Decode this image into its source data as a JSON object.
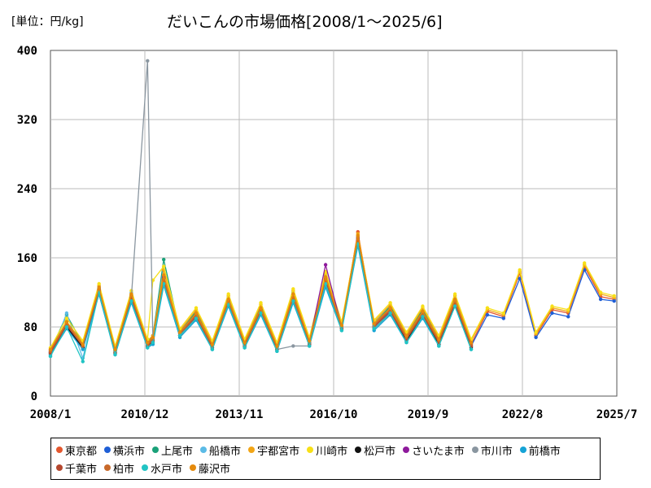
{
  "header": {
    "unit_label": "[単位：円/kg]",
    "title": "だいこんの市場価格[2008/1～2025/6]"
  },
  "chart_data": {
    "type": "line",
    "title": "だいこんの市場価格[2008/1～2025/6]",
    "unit": "円/kg",
    "xlabel": "",
    "ylabel": "",
    "ylim": [
      0,
      400
    ],
    "yticks": [
      "0",
      "80",
      "160",
      "240",
      "320",
      "400"
    ],
    "xticks": [
      "2008/1",
      "2010/12",
      "2013/11",
      "2016/10",
      "2019/9",
      "2022/8",
      "2025/7"
    ],
    "grid": true,
    "legend_position": "bottom",
    "x": [
      "2008/1",
      "2008/7",
      "2009/1",
      "2009/7",
      "2010/1",
      "2010/7",
      "2011/1",
      "2011/3",
      "2011/7",
      "2012/1",
      "2012/7",
      "2013/1",
      "2013/7",
      "2014/1",
      "2014/7",
      "2015/1",
      "2015/7",
      "2016/1",
      "2016/7",
      "2017/1",
      "2017/7",
      "2018/1",
      "2018/7",
      "2019/1",
      "2019/7",
      "2020/1",
      "2020/7",
      "2021/1",
      "2021/7",
      "2022/1",
      "2022/7",
      "2023/1",
      "2023/7",
      "2024/1",
      "2024/7",
      "2025/1",
      "2025/6"
    ],
    "series": [
      {
        "name": "東京都",
        "color": "#e4572e",
        "values": [
          48,
          82,
          58,
          124,
          52,
          116,
          60,
          68,
          140,
          72,
          96,
          58,
          112,
          60,
          102,
          56,
          118,
          62,
          138,
          80,
          190,
          82,
          102,
          68,
          98,
          64,
          112,
          60,
          98,
          92,
          142,
          70,
          100,
          96,
          150,
          115,
          112
        ]
      },
      {
        "name": "横浜市",
        "color": "#1f5fd6",
        "values": [
          50,
          80,
          57,
          120,
          50,
          112,
          58,
          64,
          132,
          70,
          92,
          56,
          108,
          58,
          98,
          54,
          112,
          60,
          132,
          78,
          184,
          80,
          98,
          66,
          94,
          62,
          108,
          58,
          94,
          90,
          136,
          68,
          96,
          92,
          146,
          112,
          110
        ]
      },
      {
        "name": "上尾市",
        "color": "#1aa179",
        "values": [
          52,
          94,
          60,
          126,
          54,
          118,
          62,
          70,
          158,
          74,
          98,
          60,
          114,
          62,
          104,
          58,
          120,
          64,
          140,
          82,
          186,
          84,
          104,
          70,
          100,
          66,
          114,
          62,
          null,
          null,
          null,
          null,
          null,
          null,
          null,
          null,
          null
        ]
      },
      {
        "name": "船橋市",
        "color": "#5bbbe6",
        "values": [
          46,
          96,
          44,
          122,
          48,
          120,
          56,
          66,
          150,
          72,
          94,
          54,
          110,
          56,
          100,
          52,
          116,
          60,
          136,
          78,
          182,
          82,
          96,
          64,
          96,
          60,
          110,
          56,
          null,
          null,
          null,
          null,
          null,
          null,
          null,
          null,
          null
        ]
      },
      {
        "name": "宇都宮市",
        "color": "#f2a516",
        "values": [
          54,
          86,
          62,
          128,
          56,
          118,
          64,
          70,
          146,
          76,
          100,
          62,
          116,
          64,
          106,
          60,
          122,
          66,
          142,
          84,
          188,
          86,
          106,
          72,
          102,
          68,
          116,
          64,
          100,
          94,
          144,
          72,
          102,
          98,
          152,
          118,
          114
        ]
      },
      {
        "name": "川崎市",
        "color": "#f7e017",
        "values": [
          56,
          90,
          64,
          130,
          58,
          122,
          66,
          134,
          150,
          78,
          102,
          64,
          118,
          66,
          108,
          62,
          124,
          68,
          144,
          86,
          186,
          88,
          108,
          74,
          104,
          70,
          118,
          66,
          102,
          96,
          146,
          74,
          104,
          100,
          154,
          120,
          116
        ]
      },
      {
        "name": "松戸市",
        "color": "#111111",
        "values": [
          50,
          80,
          56,
          118,
          50,
          110,
          58,
          62,
          136,
          70,
          90,
          56,
          106,
          58,
          96,
          54,
          110,
          60,
          130,
          78,
          176,
          78,
          96,
          64,
          92,
          60,
          106,
          56,
          null,
          null,
          null,
          null,
          null,
          null,
          null,
          null,
          null
        ]
      },
      {
        "name": "さいたま市",
        "color": "#8e1a9c",
        "values": [
          52,
          84,
          58,
          124,
          52,
          114,
          60,
          66,
          138,
          72,
          94,
          58,
          110,
          60,
          100,
          56,
          114,
          62,
          152,
          80,
          180,
          80,
          100,
          66,
          96,
          62,
          110,
          58,
          null,
          null,
          null,
          null,
          null,
          null,
          null,
          null,
          null
        ]
      },
      {
        "name": "市川市",
        "color": "#8a96a0",
        "values": [
          50,
          82,
          58,
          122,
          52,
          114,
          388,
          64,
          134,
          70,
          92,
          56,
          108,
          58,
          98,
          54,
          58,
          58,
          130,
          78,
          178,
          80,
          98,
          66,
          94,
          62,
          108,
          58,
          null,
          null,
          null,
          null,
          null,
          null,
          null,
          null,
          null
        ]
      },
      {
        "name": "前橋市",
        "color": "#15a3d6",
        "values": [
          48,
          78,
          54,
          118,
          48,
          108,
          56,
          60,
          128,
          68,
          88,
          54,
          104,
          56,
          94,
          52,
          108,
          58,
          126,
          76,
          174,
          76,
          94,
          62,
          90,
          58,
          104,
          54,
          null,
          null,
          null,
          null,
          null,
          null,
          null,
          null,
          null
        ]
      },
      {
        "name": "千葉市",
        "color": "#b5472e",
        "values": [
          50,
          82,
          58,
          122,
          50,
          114,
          58,
          64,
          134,
          70,
          92,
          56,
          108,
          58,
          98,
          54,
          112,
          60,
          134,
          78,
          182,
          80,
          98,
          66,
          94,
          62,
          108,
          58,
          null,
          null,
          null,
          null,
          null,
          null,
          null,
          null,
          null
        ]
      },
      {
        "name": "柏市",
        "color": "#c8692a",
        "values": [
          52,
          84,
          58,
          124,
          52,
          116,
          60,
          66,
          136,
          72,
          94,
          58,
          110,
          60,
          100,
          56,
          114,
          62,
          136,
          80,
          184,
          82,
          100,
          68,
          96,
          64,
          110,
          60,
          null,
          null,
          null,
          null,
          null,
          null,
          null,
          null,
          null
        ]
      },
      {
        "name": "水戸市",
        "color": "#21c4c4",
        "values": [
          46,
          80,
          40,
          120,
          48,
          110,
          56,
          62,
          130,
          70,
          90,
          54,
          106,
          56,
          96,
          52,
          110,
          58,
          130,
          76,
          176,
          78,
          96,
          62,
          92,
          58,
          104,
          54,
          null,
          null,
          null,
          null,
          null,
          null,
          null,
          null,
          null
        ]
      },
      {
        "name": "藤沢市",
        "color": "#e58a0c",
        "values": [
          54,
          86,
          60,
          126,
          54,
          118,
          62,
          68,
          140,
          74,
          96,
          60,
          112,
          62,
          102,
          58,
          118,
          64,
          138,
          82,
          186,
          84,
          102,
          70,
          98,
          66,
          112,
          62,
          null,
          null,
          null,
          null,
          null,
          null,
          null,
          null,
          null
        ]
      }
    ]
  }
}
